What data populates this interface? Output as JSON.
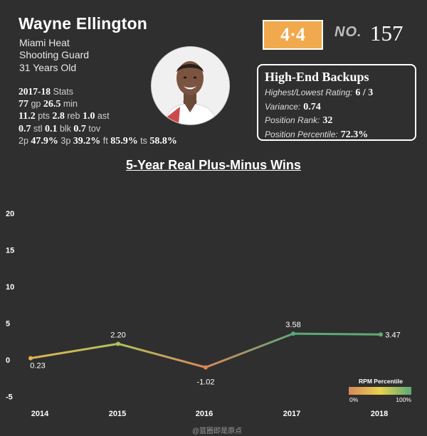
{
  "player": {
    "name": "Wayne Ellington",
    "team": "Miami Heat",
    "position": "Shooting Guard",
    "age": "31 Years Old"
  },
  "stats": {
    "header": "2017-18",
    "header_suffix": "Stats",
    "gp": "77",
    "gp_label": "gp",
    "min": "26.5",
    "min_label": "min",
    "pts": "11.2",
    "pts_label": "pts",
    "reb": "2.8",
    "reb_label": "reb",
    "ast": "1.0",
    "ast_label": "ast",
    "stl": "0.7",
    "stl_label": "stl",
    "blk": "0.1",
    "blk_label": "blk",
    "tov": "0.7",
    "tov_label": "tov",
    "p2_label": "2p",
    "p2": "47.9%",
    "p3_label": "3p",
    "p3": "39.2%",
    "ft_label": "ft",
    "ft": "85.9%",
    "ts_label": "ts",
    "ts": "58.8%"
  },
  "rating": {
    "value": "4·4",
    "no_label": "NO.",
    "no_value": "157",
    "accent": "#f1a94e"
  },
  "tier": {
    "title": "High-End Backups",
    "rows": [
      {
        "label": "Highest/Lowest Rating:",
        "value": "6 / 3"
      },
      {
        "label": "Variance:",
        "value": "0.74"
      },
      {
        "label": "Position Rank:",
        "value": "32"
      },
      {
        "label": "Position Percentile:",
        "value": "72.3%"
      }
    ]
  },
  "chart_data": {
    "type": "line",
    "title": "5-Year Real Plus-Minus Wins",
    "x": [
      "2014",
      "2015",
      "2016",
      "2017",
      "2018"
    ],
    "series": [
      {
        "values": [
          0.23,
          2.2,
          -1.02,
          3.58,
          3.47
        ]
      }
    ],
    "data_labels": [
      "0.23",
      "2.20",
      "-1.02",
      "3.58",
      "3.47"
    ],
    "yticks": [
      "20",
      "15",
      "10",
      "5",
      "0",
      "-5"
    ],
    "ylim": [
      -6,
      23
    ],
    "grid": false,
    "legend": {
      "title": "RPM Percentile",
      "min_label": "0%",
      "max_label": "100%",
      "placement": "bottom-right",
      "colors": [
        "#d9875a",
        "#e8d24c",
        "#5aa978"
      ]
    }
  },
  "watermark": "@篮圈即是原点"
}
